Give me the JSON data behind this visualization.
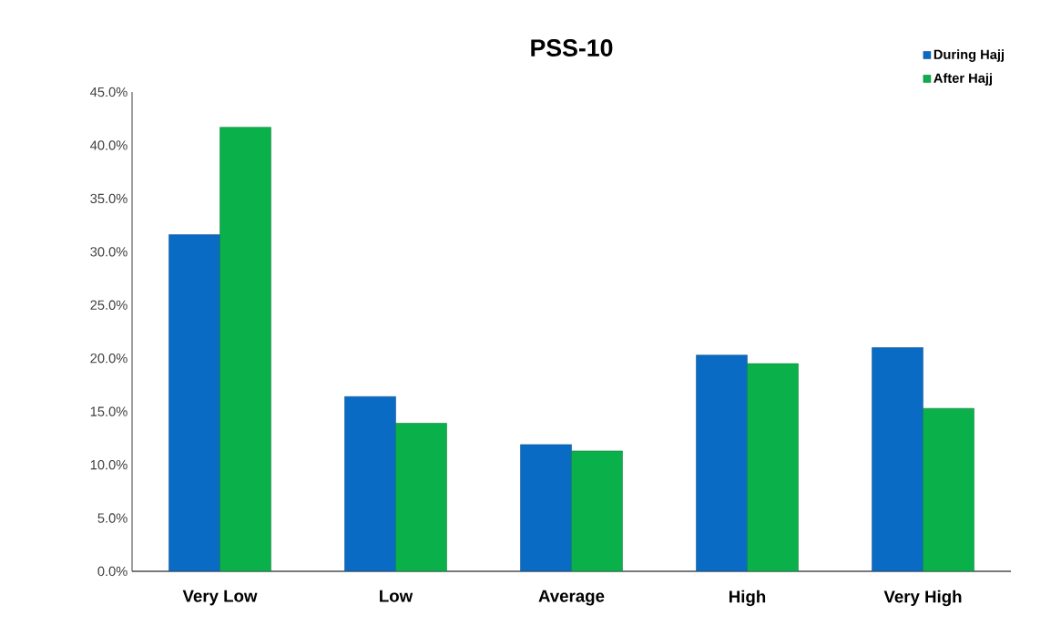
{
  "chart_data": {
    "type": "bar",
    "title": "PSS-10",
    "categories": [
      "Very Low",
      "Low",
      "Average",
      "High",
      "Very High"
    ],
    "series": [
      {
        "name": "During Hajj",
        "color": "#0a6bc4",
        "values": [
          31.6,
          16.4,
          11.9,
          20.3,
          21.0
        ]
      },
      {
        "name": "After Hajj",
        "color": "#0ab04a",
        "values": [
          41.7,
          13.9,
          11.3,
          19.5,
          15.3
        ]
      }
    ],
    "ylim": [
      0,
      45
    ],
    "yticks": [
      {
        "value": 0,
        "label": "0.0%"
      },
      {
        "value": 5,
        "label": "5.0%"
      },
      {
        "value": 10,
        "label": "10.0%"
      },
      {
        "value": 15,
        "label": "15.0%"
      },
      {
        "value": 20,
        "label": "20.0%"
      },
      {
        "value": 25,
        "label": "25.0%"
      },
      {
        "value": 30,
        "label": "30.0%"
      },
      {
        "value": 35,
        "label": "35.0%"
      },
      {
        "value": 40,
        "label": "40.0%"
      },
      {
        "value": 45,
        "label": "45.0%"
      }
    ],
    "grid": false,
    "legend": "top right"
  }
}
